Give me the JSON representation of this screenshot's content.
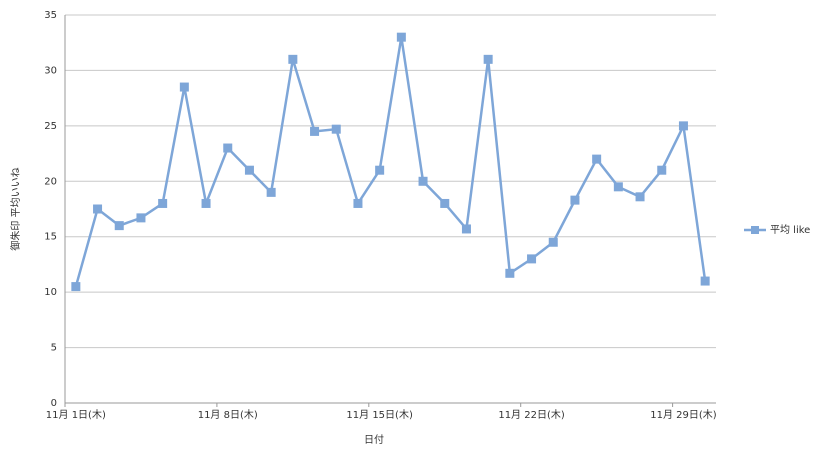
{
  "chart_data": {
    "type": "line",
    "categories": [
      "11月 1日(木)",
      null,
      null,
      null,
      null,
      null,
      null,
      "11月 8日(木)",
      null,
      null,
      null,
      null,
      null,
      null,
      "11月 15日(木)",
      null,
      null,
      null,
      null,
      null,
      null,
      "11月 22日(木)",
      null,
      null,
      null,
      null,
      null,
      null,
      "11月 29日(木)",
      null
    ],
    "series": [
      {
        "name": "平均 like",
        "color": "#7ea6d8",
        "values": [
          10.5,
          17.5,
          16,
          16.7,
          18,
          28.5,
          18,
          23,
          21,
          19,
          31,
          24.5,
          24.7,
          18,
          21,
          33,
          20,
          18,
          15.7,
          31,
          11.7,
          13,
          14.5,
          18.3,
          22,
          19.5,
          18.6,
          21,
          25,
          11
        ]
      }
    ],
    "x_label": "日付",
    "y_label": "御朱印 平均いいね",
    "ylim": [
      0,
      35
    ],
    "yticks": [
      0,
      5,
      10,
      15,
      20,
      25,
      30,
      35
    ],
    "grid": true,
    "legend": "right"
  }
}
